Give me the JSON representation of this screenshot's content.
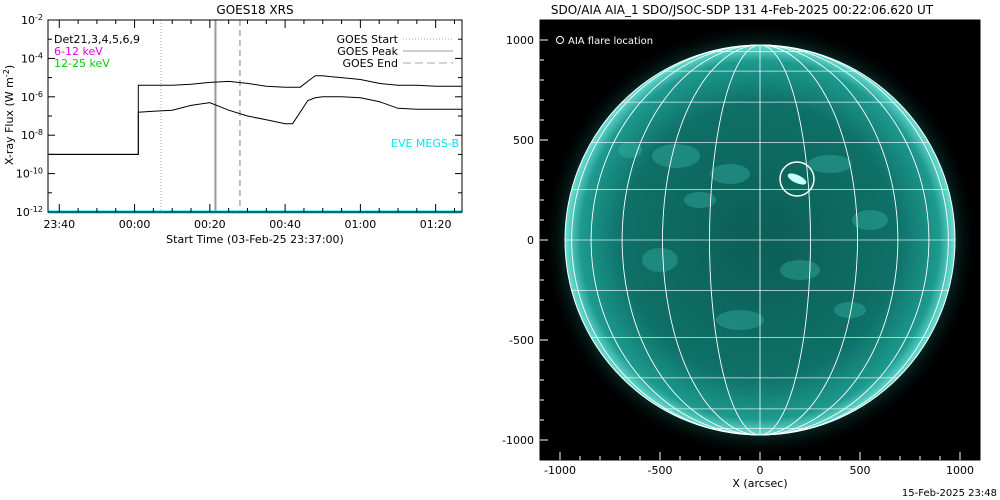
{
  "chart_data": [
    {
      "type": "line",
      "title": "GOES18 XRS",
      "xlabel": "Start Time (03-Feb-25 23:37:00)",
      "ylabel": "X-ray Flux (W m",
      "ylabel_sup": "-2",
      "ylabel_close": ")",
      "xlim_minutes": [
        -23,
        87
      ],
      "ylim_log10": [
        -12,
        -2
      ],
      "yscale": "log",
      "x_ticks": [
        {
          "min": -20,
          "label": "23:40"
        },
        {
          "min": 0,
          "label": "00:00"
        },
        {
          "min": 20,
          "label": "00:20"
        },
        {
          "min": 40,
          "label": "00:40"
        },
        {
          "min": 60,
          "label": "01:00"
        },
        {
          "min": 80,
          "label": "01:20"
        }
      ],
      "y_ticks": [
        {
          "exp": -2,
          "label": "-2"
        },
        {
          "exp": -4,
          "label": "-4"
        },
        {
          "exp": -6,
          "label": "-6"
        },
        {
          "exp": -8,
          "label": "-8"
        },
        {
          "exp": -10,
          "label": "-10"
        },
        {
          "exp": -12,
          "label": "-12"
        }
      ],
      "legend_left": [
        {
          "label": "Det21,3,4,5,6,9",
          "color": "#000000"
        },
        {
          "label": "6-12 keV",
          "color": "#e000e0"
        },
        {
          "label": "12-25 keV",
          "color": "#00cc00"
        }
      ],
      "legend_right": [
        {
          "label": "GOES Start",
          "style": "dotted",
          "color": "#aaaaaa"
        },
        {
          "label": "GOES Peak",
          "style": "solid",
          "color": "#999999"
        },
        {
          "label": "GOES End",
          "style": "dashed",
          "color": "#aaaaaa"
        }
      ],
      "eve_label": "EVE MEGS-B",
      "eve_color": "#00e5ee",
      "goes_start_min": 7,
      "goes_peak_min": 21.5,
      "goes_end_min": 28,
      "series": [
        {
          "name": "upper",
          "color": "#000000",
          "x": [
            -23,
            1,
            1,
            10,
            15,
            20,
            25,
            30,
            35,
            40,
            44,
            46,
            48,
            50,
            52,
            55,
            60,
            65,
            70,
            75,
            80,
            87
          ],
          "y_log10": [
            -9.0,
            -9.0,
            -5.4,
            -5.4,
            -5.35,
            -5.25,
            -5.2,
            -5.3,
            -5.45,
            -5.5,
            -5.5,
            -5.2,
            -4.9,
            -4.9,
            -4.95,
            -5.0,
            -5.1,
            -5.3,
            -5.4,
            -5.4,
            -5.45,
            -5.45
          ]
        },
        {
          "name": "lower",
          "color": "#000000",
          "x": [
            -23,
            1,
            1,
            5,
            10,
            15,
            20,
            25,
            30,
            35,
            40,
            42,
            44,
            46,
            48,
            50,
            55,
            60,
            65,
            70,
            75,
            80,
            87
          ],
          "y_log10": [
            -9.0,
            -9.0,
            -6.8,
            -6.75,
            -6.7,
            -6.45,
            -6.3,
            -6.7,
            -7.0,
            -7.2,
            -7.4,
            -7.4,
            -6.8,
            -6.2,
            -6.05,
            -6.0,
            -6.0,
            -6.05,
            -6.25,
            -6.6,
            -6.65,
            -6.65,
            -6.65
          ]
        },
        {
          "name": "cyan",
          "color": "#00e5ee",
          "x": [
            -23,
            87
          ],
          "y_log10": [
            -12,
            -12
          ]
        }
      ]
    },
    {
      "type": "image",
      "title": "SDO/AIA AIA_1 SDO/JSOC-SDP 131  4-Feb-2025 00:22:06.620 UT",
      "xlabel": "X (arcsec)",
      "xlim": [
        -1100,
        1100
      ],
      "ylim": [
        -1100,
        1100
      ],
      "x_ticks": [
        -1000,
        -500,
        0,
        500,
        1000
      ],
      "y_ticks": [
        1000,
        500,
        0,
        -500,
        -1000
      ],
      "solar_radius_arcsec": 975,
      "legend_label": "AIA flare location",
      "flare_x": 185,
      "flare_y": 305,
      "flare_radius": 85,
      "disk_color": "#0d6f66",
      "grid": true,
      "footer": "15-Feb-2025 23:48"
    }
  ]
}
